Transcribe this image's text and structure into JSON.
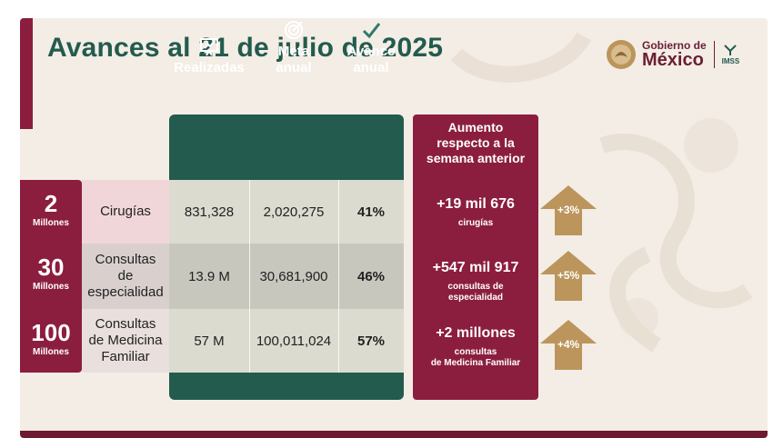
{
  "title": "Avances al 21 de julio de 2025",
  "logos": {
    "gobierno_line1": "Gobierno de",
    "gobierno_line2": "México",
    "imss": "IMSS"
  },
  "columns": [
    {
      "label": "Realizadas",
      "icon": "presentation-chart-icon"
    },
    {
      "label": "Meta\nanual",
      "icon": "target-icon"
    },
    {
      "label": "Avance\nanual",
      "icon": "checkmark-icon"
    }
  ],
  "rows": [
    {
      "unit_number": "2",
      "unit_label": "Millones",
      "category": "Cirugías",
      "realizadas": "831,328",
      "meta": "2,020,275",
      "avance": "41%"
    },
    {
      "unit_number": "30",
      "unit_label": "Millones",
      "category": "Consultas\nde\nespecialidad",
      "realizadas": "13.9 M",
      "meta": "30,681,900",
      "avance": "46%"
    },
    {
      "unit_number": "100",
      "unit_label": "Millones",
      "category": "Consultas\nde Medicina\nFamiliar",
      "realizadas": "57 M",
      "meta": "100,011,024",
      "avance": "57%"
    }
  ],
  "increase": {
    "header": "Aumento\nrespecto a la\nsemana anterior",
    "items": [
      {
        "value": "+19 mil 676",
        "label": "cirugías",
        "pct": "+3%"
      },
      {
        "value": "+547 mil 917",
        "label": "consultas de\nespecialidad",
        "pct": "+5%"
      },
      {
        "value": "+2 millones",
        "label": "consultas\nde Medicina Familiar",
        "pct": "+4%"
      }
    ]
  },
  "colors": {
    "green": "#235b4e",
    "maroon": "#8b1e3f",
    "gold": "#bc955c",
    "background": "#f3ede6"
  }
}
